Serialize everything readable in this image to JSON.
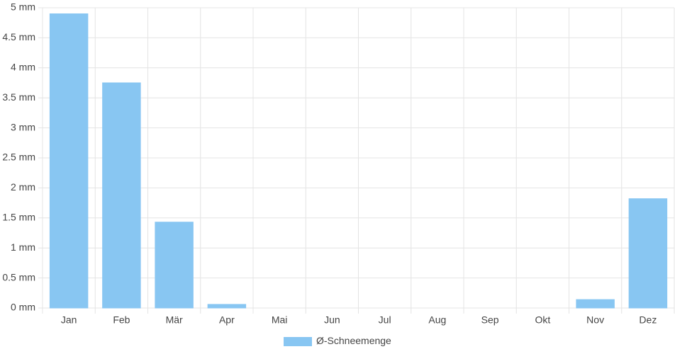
{
  "chart_data": {
    "type": "bar",
    "categories": [
      "Jan",
      "Feb",
      "Mär",
      "Apr",
      "Mai",
      "Jun",
      "Jul",
      "Aug",
      "Sep",
      "Okt",
      "Nov",
      "Dez"
    ],
    "series": [
      {
        "name": "Ø-Schneemenge",
        "color": "#88c6f2",
        "values": [
          4.9,
          3.75,
          1.43,
          0.06,
          0,
          0,
          0,
          0,
          0,
          0,
          0.14,
          1.82
        ]
      }
    ],
    "ylim": [
      0,
      5
    ],
    "yticks": [
      {
        "value": 0,
        "label": "0 mm"
      },
      {
        "value": 0.5,
        "label": "0.5 mm"
      },
      {
        "value": 1,
        "label": "1 mm"
      },
      {
        "value": 1.5,
        "label": "1.5 mm"
      },
      {
        "value": 2,
        "label": "2 mm"
      },
      {
        "value": 2.5,
        "label": "2.5 mm"
      },
      {
        "value": 3,
        "label": "3 mm"
      },
      {
        "value": 3.5,
        "label": "3.5 mm"
      },
      {
        "value": 4,
        "label": "4 mm"
      },
      {
        "value": 4.5,
        "label": "4.5 mm"
      },
      {
        "value": 5,
        "label": "5 mm"
      }
    ],
    "grid": true,
    "legend": "bottom"
  }
}
